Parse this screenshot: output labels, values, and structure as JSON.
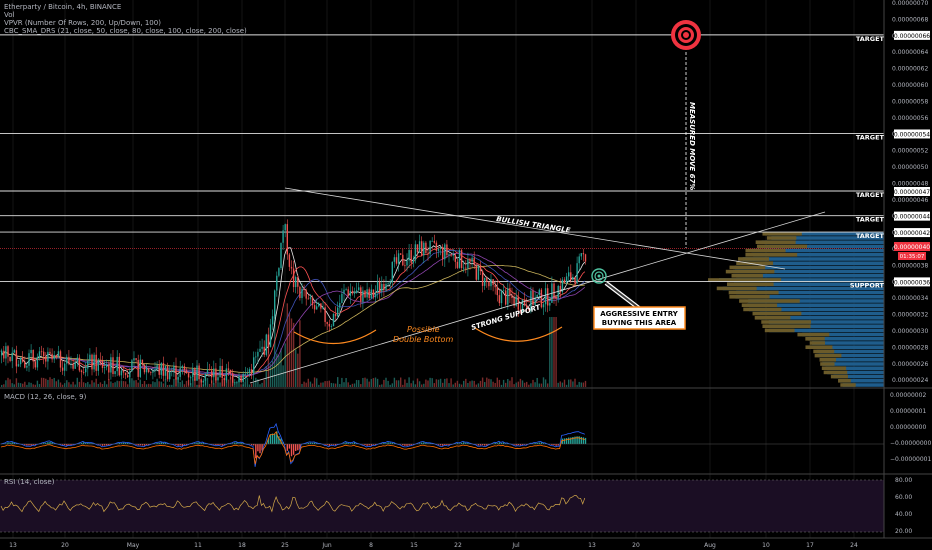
{
  "header": {
    "symbol_line": "Etherparty / Bitcoin, 4h, BINANCE",
    "vol_label": "Vol",
    "vpvr_label": "VPVR (Number Of Rows, 200, Up/Down, 100)",
    "sma_label": "CBC_SMA_DRS (21, close, 50, close, 80, close, 100, close, 200, close)"
  },
  "price_axis": {
    "ticks": [
      "0.00000070",
      "0.00000068",
      "0.00000066",
      "0.00000064",
      "0.00000062",
      "0.00000060",
      "0.00000058",
      "0.00000056",
      "0.00000054",
      "0.00000052",
      "0.00000050",
      "0.00000048",
      "0.00000046",
      "0.00000044",
      "0.00000042",
      "0.00000040",
      "0.00000038",
      "0.00000036",
      "0.00000034",
      "0.00000032",
      "0.00000030",
      "0.00000028",
      "0.00000026",
      "0.00000024"
    ],
    "current_price": "0.00000040",
    "countdown": "01:35:07"
  },
  "levels": [
    {
      "label": "TARGET",
      "value": "0.00000066",
      "price": 6.6e-07
    },
    {
      "label": "TARGET",
      "value": "0.00000054",
      "price": 5.4e-07
    },
    {
      "label": "TARGET",
      "value": "0.00000047",
      "price": 4.7e-07
    },
    {
      "label": "TARGET",
      "value": "0.00000044",
      "price": 4.4e-07
    },
    {
      "label": "TARGET",
      "value": "0.00000042",
      "price": 4.2e-07
    },
    {
      "label": "SUPPORT",
      "value": "0.00000036",
      "price": 3.6e-07
    }
  ],
  "annotations": {
    "bullish_triangle": "BULLISH TRIANGLE",
    "strong_support": "STRONG SUPPORT",
    "possible": "Possible",
    "double_bottom": "Double Bottom",
    "measured_move": "MEASURED MOVE 67%",
    "entry_line1": "AGGRESSIVE ENTRY",
    "entry_line2": "BUYING THIS AREA"
  },
  "macd": {
    "label": "MACD (12, 26, close, 9)",
    "ticks": [
      "0.00000002",
      "0.00000001",
      "0.00000000",
      "−0.00000000",
      "−0.00000001"
    ]
  },
  "rsi": {
    "label": "RSI (14, close)",
    "ticks": [
      "80.00",
      "60.00",
      "40.00",
      "20.00"
    ]
  },
  "time_axis": {
    "labels": [
      "13",
      "20",
      "May",
      "11",
      "18",
      "25",
      "Jun",
      "8",
      "15",
      "22",
      "Jul",
      "13",
      "20",
      "Aug",
      "10",
      "17",
      "24"
    ]
  },
  "colors": {
    "up": "#26a69a",
    "down": "#ef5350",
    "target_red": "#ef3340",
    "brown": "#6b5b2a",
    "vp_blue": "#1f5d8c",
    "orange": "#ff8a1f"
  },
  "chart_data": {
    "type": "candlestick",
    "pair": "Etherparty / Bitcoin",
    "interval": "4h",
    "exchange": "BINANCE",
    "price_range": [
      2.3e-07,
      7e-07
    ],
    "key_levels": {
      "targets": [
        4.2e-07,
        4.4e-07,
        4.7e-07,
        5.4e-07,
        6.6e-07
      ],
      "support": 3.6e-07,
      "current": 4e-07
    },
    "approx_close_path": [
      {
        "date": "13",
        "close": 2.6e-07
      },
      {
        "date": "20",
        "close": 2.6e-07
      },
      {
        "date": "May",
        "close": 2.5e-07
      },
      {
        "date": "11",
        "close": 2.5e-07
      },
      {
        "date": "18",
        "close": 2.4e-07
      },
      {
        "date": "25",
        "close": 3.8e-07
      },
      {
        "date": "Jun",
        "close": 3.2e-07
      },
      {
        "date": "8",
        "close": 3.6e-07
      },
      {
        "date": "15",
        "close": 3.9e-07
      },
      {
        "date": "22",
        "close": 3.9e-07
      },
      {
        "date": "Jul",
        "close": 3.4e-07
      },
      {
        "date": "13",
        "close": 4e-07
      }
    ],
    "rsi_range": [
      20,
      80
    ],
    "macd_range": [
      -1e-08,
      2e-08
    ]
  }
}
